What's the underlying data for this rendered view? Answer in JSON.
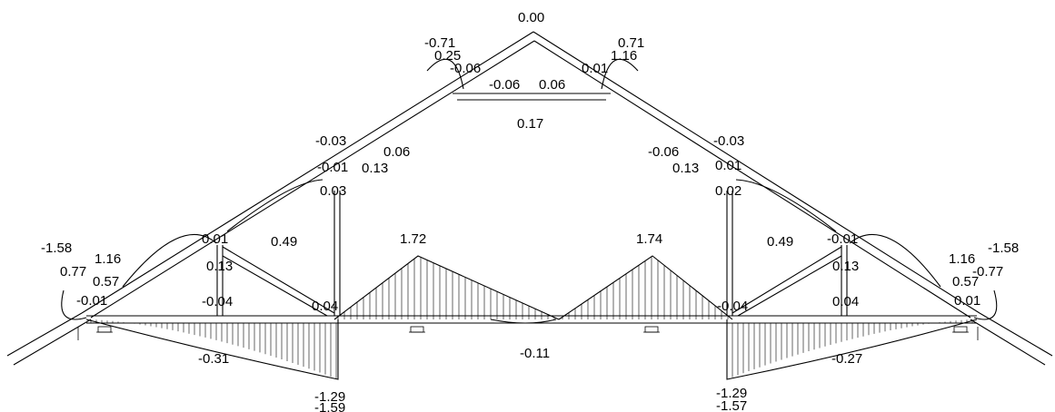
{
  "diagram": {
    "labels": {
      "apex": "0.00",
      "top_left_outer": "-0.71",
      "top_left_hidden": "0.25",
      "top_left_inner": "-0.06",
      "top_right_outer": "0.71",
      "top_right_hidden": "1.16",
      "top_right_inner": "0.01",
      "top_chord_left": "-0.06",
      "top_chord_right": "0.06",
      "top_tie": "0.17",
      "mid_left_a": "-0.03",
      "mid_left_b": "-0.01",
      "mid_left_c": "0.13",
      "mid_left_d": "0.06",
      "mid_left_e": "0.03",
      "mid_right_a": "-0.03",
      "mid_right_b": "-0.06",
      "mid_right_c": "0.13",
      "mid_right_d": "0.01",
      "mid_right_e": "0.02",
      "low_left_a": "-1.58",
      "low_left_b": "1.16",
      "low_left_c": "0.77",
      "low_left_d": "0.57",
      "low_left_e": "-0.01",
      "low_left_f": "0.01",
      "low_left_g": "0.13",
      "low_left_h": "-0.04",
      "low_left_i": "0.49",
      "low_left_j": "0.04",
      "low_right_a": "-1.58",
      "low_right_b": "1.16",
      "low_right_c": "-0.77",
      "low_right_d": "0.57",
      "low_right_e": "0.01",
      "low_right_f": "-0.01",
      "low_right_g": "0.13",
      "low_right_h": "0.04",
      "low_right_i": "0.49",
      "low_right_j": "-0.04",
      "peak_left": "1.72",
      "peak_right": "1.74",
      "bottom_left": "-0.31",
      "bottom_mid": "-0.11",
      "bottom_right": "-0.27",
      "support_left_top": "-1.29",
      "support_left_bot": "-1.59",
      "support_right_top": "-1.29",
      "support_right_bot": "-1.57"
    }
  }
}
